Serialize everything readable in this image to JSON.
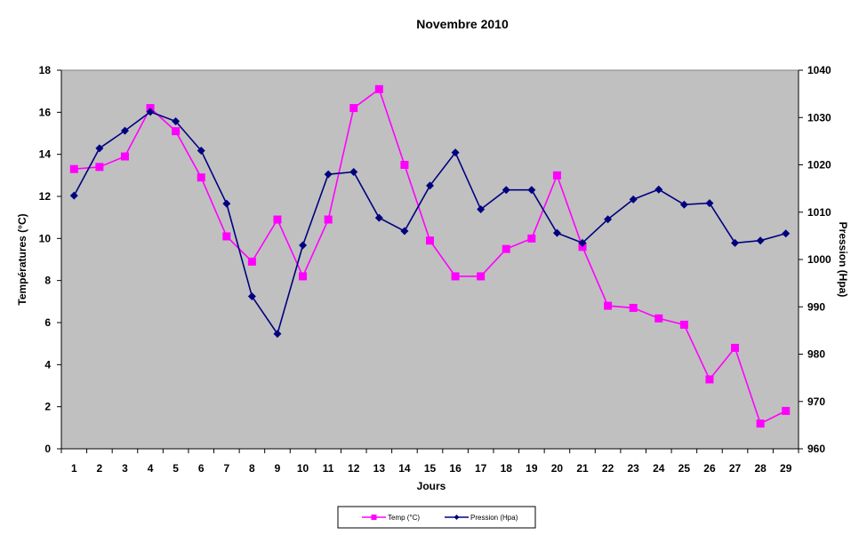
{
  "chart_data": {
    "type": "line",
    "title": "Novembre 2010",
    "xlabel": "Jours",
    "ylabel": "Températures (°C)",
    "y2label": "Pression (Hpa)",
    "x": [
      1,
      2,
      3,
      4,
      5,
      6,
      7,
      8,
      9,
      10,
      11,
      12,
      13,
      14,
      15,
      16,
      17,
      18,
      19,
      20,
      21,
      22,
      23,
      24,
      25,
      26,
      27,
      28,
      29
    ],
    "ylim": [
      0,
      18
    ],
    "y_ticks": [
      0,
      2,
      4,
      6,
      8,
      10,
      12,
      14,
      16,
      18
    ],
    "y2lim": [
      960,
      1040
    ],
    "y2_ticks": [
      960,
      970,
      980,
      990,
      1000,
      1010,
      1020,
      1030,
      1040
    ],
    "plot_background": "#c0c0c0",
    "grid": false,
    "legend_position": "bottom",
    "series": [
      {
        "name": "Temp (°C)",
        "axis": "left",
        "color": "#ff00ff",
        "marker": "square",
        "values": [
          13.3,
          13.4,
          13.9,
          16.2,
          15.1,
          12.9,
          10.1,
          8.9,
          10.9,
          8.2,
          10.9,
          16.2,
          17.1,
          13.5,
          9.9,
          8.2,
          8.2,
          9.5,
          10.0,
          13.0,
          9.6,
          6.8,
          6.7,
          6.2,
          5.9,
          3.3,
          4.8,
          1.2,
          1.8
        ]
      },
      {
        "name": "Pression (Hpa)",
        "axis": "right",
        "color": "#000080",
        "marker": "diamond",
        "values": [
          1013.5,
          1023.5,
          1027.2,
          1031.2,
          1029.2,
          1023.0,
          1011.8,
          992.2,
          984.3,
          1003.0,
          1018.0,
          1018.5,
          1008.8,
          1006.0,
          1015.6,
          1022.6,
          1010.6,
          1014.7,
          1014.7,
          1005.6,
          1003.5,
          1008.5,
          1012.7,
          1014.8,
          1011.6,
          1011.9,
          1003.5,
          1004.0,
          1005.5
        ]
      }
    ]
  }
}
